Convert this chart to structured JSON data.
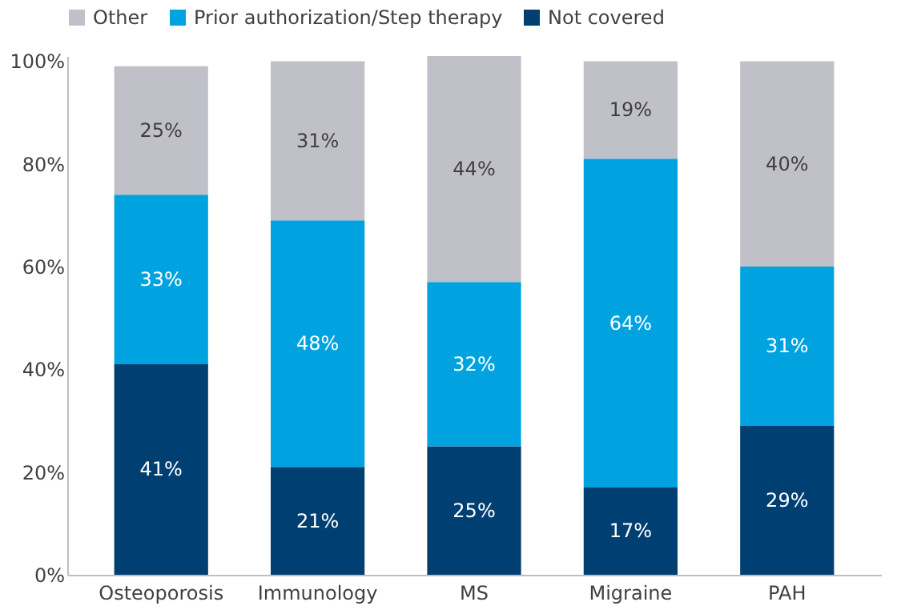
{
  "chart_data": {
    "type": "bar",
    "stacked": true,
    "categories": [
      "Osteoporosis",
      "Immunology",
      "MS",
      "Migraine",
      "PAH"
    ],
    "series": [
      {
        "name": "Not covered",
        "color": "#003f72",
        "values": [
          41,
          21,
          25,
          17,
          29
        ]
      },
      {
        "name": "Prior authorization/Step therapy",
        "color": "#00a3e0",
        "values": [
          33,
          48,
          32,
          64,
          31
        ]
      },
      {
        "name": "Other",
        "color": "#c0c0c8",
        "values": [
          25,
          31,
          44,
          19,
          40
        ]
      }
    ],
    "ylim": [
      0,
      101
    ],
    "yticks": [
      {
        "value": 0,
        "label": "0%"
      },
      {
        "value": 20,
        "label": "20%"
      },
      {
        "value": 40,
        "label": "40%"
      },
      {
        "value": 60,
        "label": "60%"
      },
      {
        "value": 80,
        "label": "80%"
      },
      {
        "value": 100,
        "label": "100%"
      }
    ],
    "value_labels": [
      [
        "41%",
        "21%",
        "25%",
        "17%",
        "29%"
      ],
      [
        "33%",
        "48%",
        "32%",
        "64%",
        "31%"
      ],
      [
        "25%",
        "31%",
        "44%",
        "19%",
        "40%"
      ]
    ],
    "legend": "top",
    "grid": false
  }
}
